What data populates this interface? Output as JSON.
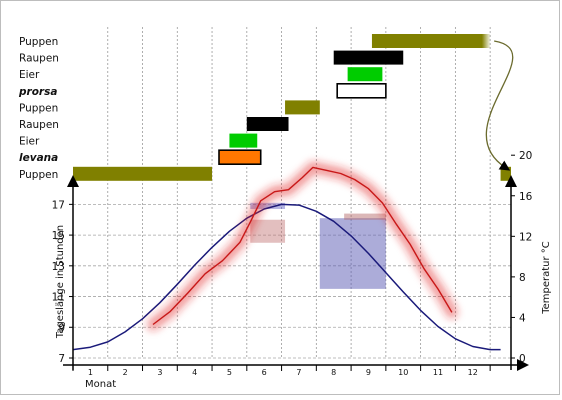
{
  "chart_data": [
    {
      "type": "gantt",
      "rows": [
        {
          "label": "Puppen",
          "emphasis": false
        },
        {
          "label": "Raupen",
          "emphasis": false
        },
        {
          "label": "Eier",
          "emphasis": false
        },
        {
          "label": "prorsa",
          "emphasis": true
        },
        {
          "label": "Puppen",
          "emphasis": false
        },
        {
          "label": "Raupen",
          "emphasis": false
        },
        {
          "label": "Eier",
          "emphasis": false
        },
        {
          "label": "levana",
          "emphasis": true
        },
        {
          "label": "Puppen",
          "emphasis": false
        }
      ],
      "bars": [
        {
          "row": 0,
          "start": 8.6,
          "end": 12.0,
          "color": "#808000",
          "fade_end": true
        },
        {
          "row": 1,
          "start": 7.5,
          "end": 9.5,
          "color": "#000000"
        },
        {
          "row": 2,
          "start": 7.9,
          "end": 8.9,
          "color": "#00cc00"
        },
        {
          "row": 3,
          "start": 7.6,
          "end": 9.0,
          "color": "#ffffff",
          "outline": "#000000"
        },
        {
          "row": 4,
          "start": 6.1,
          "end": 7.1,
          "color": "#808000"
        },
        {
          "row": 5,
          "start": 5.0,
          "end": 6.2,
          "color": "#000000"
        },
        {
          "row": 6,
          "start": 4.5,
          "end": 5.3,
          "color": "#00cc00"
        },
        {
          "row": 7,
          "start": 4.2,
          "end": 5.4,
          "color": "#ff7700",
          "outline": "#000000"
        },
        {
          "row": 8,
          "start": 0.0,
          "end": 4.0,
          "color": "#808000"
        },
        {
          "row": 8,
          "start": 12.3,
          "end": 12.6,
          "color": "#808000"
        }
      ],
      "connector_color": "#6b6b2e"
    },
    {
      "type": "line",
      "xlabel": "Monat",
      "x_ticks": [
        "1",
        "2",
        "3",
        "4",
        "5",
        "6",
        "7",
        "8",
        "9",
        "10",
        "11",
        "12"
      ],
      "xlim": [
        0,
        12.6
      ],
      "ylabel_left": "Tageslänge in Stunden",
      "ylim_left": [
        7,
        18
      ],
      "yticks_left": [
        "7",
        "9",
        "11",
        "13",
        "15",
        "17"
      ],
      "ylabel_right": "Temperatur °C",
      "ylim_right": [
        0,
        20
      ],
      "yticks_right": [
        "0",
        "4",
        "8",
        "12",
        "16",
        "20"
      ],
      "grid": true,
      "series": [
        {
          "axis": "left",
          "color": "#1a1a7a",
          "x": [
            0.0,
            0.5,
            1.0,
            1.5,
            2.0,
            2.5,
            3.0,
            3.5,
            4.0,
            4.5,
            5.0,
            5.5,
            6.0,
            6.5,
            7.0,
            7.5,
            8.0,
            8.5,
            9.0,
            9.5,
            10.0,
            10.5,
            11.0,
            11.5,
            12.0,
            12.3
          ],
          "values": [
            7.55,
            7.7,
            8.05,
            8.7,
            9.55,
            10.6,
            11.8,
            13.05,
            14.2,
            15.25,
            16.1,
            16.7,
            17.0,
            16.95,
            16.55,
            15.9,
            14.95,
            13.8,
            12.55,
            11.3,
            10.1,
            9.05,
            8.25,
            7.75,
            7.55,
            7.55
          ]
        },
        {
          "axis": "right",
          "color": "#e02020",
          "glow": true,
          "x": [
            2.3,
            2.8,
            3.3,
            3.8,
            4.3,
            4.8,
            5.1,
            5.4,
            5.8,
            6.2,
            6.6,
            6.9,
            7.3,
            7.7,
            8.1,
            8.5,
            8.9,
            9.3,
            9.7,
            10.1,
            10.5,
            10.9
          ],
          "values": [
            3.3,
            4.6,
            6.4,
            8.3,
            9.6,
            11.4,
            13.4,
            15.5,
            16.4,
            16.6,
            17.8,
            18.8,
            18.5,
            18.2,
            17.6,
            16.7,
            15.3,
            13.2,
            11.2,
            8.8,
            6.8,
            4.5
          ]
        }
      ],
      "highlights": [
        {
          "x0": 5.1,
          "x1": 6.1,
          "y_left0": 16.7,
          "y_left1": 17.1,
          "color": "#5c5cc0",
          "opacity": 0.45
        },
        {
          "x0": 5.1,
          "x1": 6.1,
          "y_left0": 14.5,
          "y_left1": 16.0,
          "color": "#c07070",
          "opacity": 0.45
        },
        {
          "x0": 7.1,
          "x1": 9.0,
          "y_left0": 11.5,
          "y_left1": 16.1,
          "color": "#5a5ab4",
          "opacity": 0.5
        },
        {
          "x0": 7.8,
          "x1": 9.0,
          "y_left0": 16.0,
          "y_left1": 16.4,
          "color": "#b06060",
          "opacity": 0.45
        }
      ]
    }
  ]
}
